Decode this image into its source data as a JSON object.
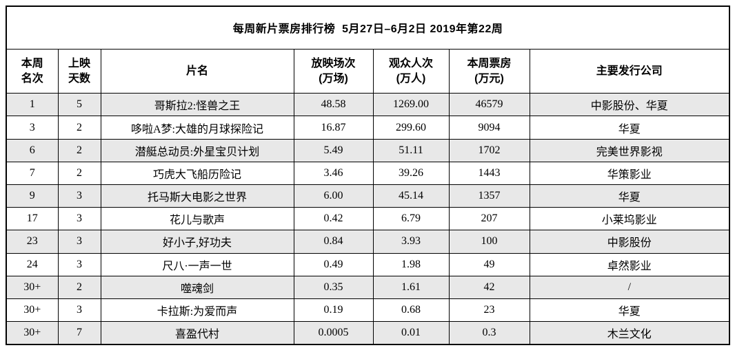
{
  "table": {
    "title": "每周新片票房排行榜  5月27日–6月2日 2019年第22周",
    "columns": [
      {
        "label": "本周\n名次"
      },
      {
        "label": "上映\n天数"
      },
      {
        "label": "片名"
      },
      {
        "label": "放映场次\n(万场)"
      },
      {
        "label": "观众人次\n(万人)"
      },
      {
        "label": "本周票房\n(万元)"
      },
      {
        "label": "主要发行公司"
      }
    ],
    "rows": [
      {
        "rank": "1",
        "days": "5",
        "name": "哥斯拉2:怪兽之王",
        "screenings": "48.58",
        "admissions": "1269.00",
        "box_office": "46579",
        "distributor": "中影股份、华夏"
      },
      {
        "rank": "3",
        "days": "2",
        "name": "哆啦A梦:大雄的月球探险记",
        "screenings": "16.87",
        "admissions": "299.60",
        "box_office": "9094",
        "distributor": "华夏"
      },
      {
        "rank": "6",
        "days": "2",
        "name": "潜艇总动员:外星宝贝计划",
        "screenings": "5.49",
        "admissions": "51.11",
        "box_office": "1702",
        "distributor": "完美世界影视"
      },
      {
        "rank": "7",
        "days": "2",
        "name": "巧虎大飞船历险记",
        "screenings": "3.46",
        "admissions": "39.26",
        "box_office": "1443",
        "distributor": "华策影业"
      },
      {
        "rank": "9",
        "days": "3",
        "name": "托马斯大电影之世界",
        "screenings": "6.00",
        "admissions": "45.14",
        "box_office": "1357",
        "distributor": "华夏"
      },
      {
        "rank": "17",
        "days": "3",
        "name": "花儿与歌声",
        "screenings": "0.42",
        "admissions": "6.79",
        "box_office": "207",
        "distributor": "小莱坞影业"
      },
      {
        "rank": "23",
        "days": "3",
        "name": "好小子,好功夫",
        "screenings": "0.84",
        "admissions": "3.93",
        "box_office": "100",
        "distributor": "中影股份"
      },
      {
        "rank": "24",
        "days": "3",
        "name": "尺八·一声一世",
        "screenings": "0.49",
        "admissions": "1.98",
        "box_office": "49",
        "distributor": "卓然影业"
      },
      {
        "rank": "30+",
        "days": "2",
        "name": "噬魂剑",
        "screenings": "0.35",
        "admissions": "1.61",
        "box_office": "42",
        "distributor": "/"
      },
      {
        "rank": "30+",
        "days": "3",
        "name": "卡拉斯:为爱而声",
        "screenings": "0.19",
        "admissions": "0.68",
        "box_office": "23",
        "distributor": "华夏"
      },
      {
        "rank": "30+",
        "days": "7",
        "name": "喜盈代村",
        "screenings": "0.0005",
        "admissions": "0.01",
        "box_office": "0.3",
        "distributor": "木兰文化"
      }
    ],
    "colors": {
      "stripe": "#e8e8e8",
      "border": "#000000",
      "text": "#000000"
    }
  }
}
